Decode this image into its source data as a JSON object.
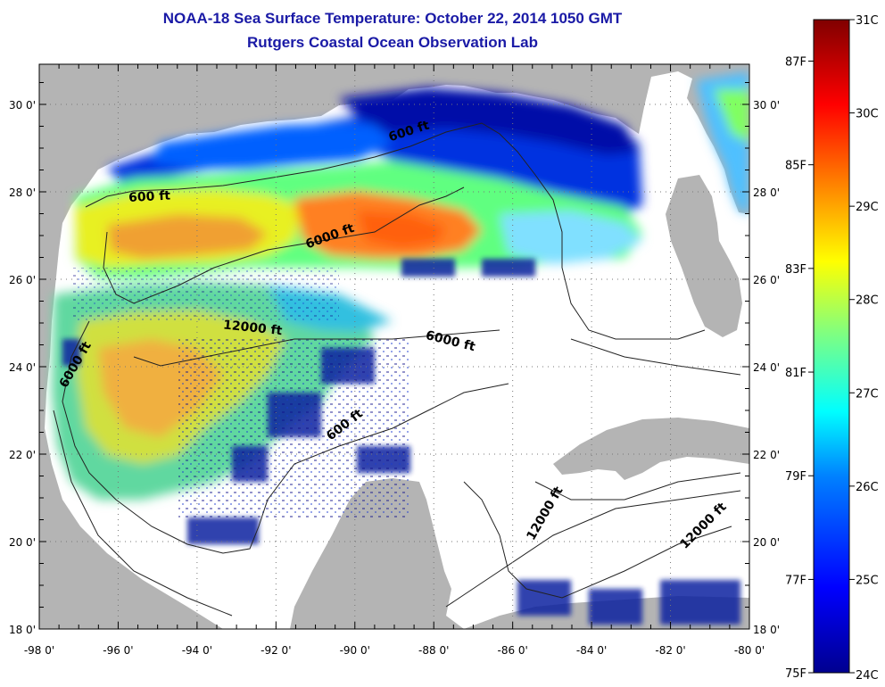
{
  "title": "NOAA-18 Sea Surface Temperature:  October 22, 2014 1050 GMT",
  "subtitle": "Rutgers Coastal Ocean Observation Lab",
  "map": {
    "lat_labels": [
      "30 0'",
      "28 0'",
      "26 0'",
      "24 0'",
      "22 0'",
      "20 0'",
      "18 0'"
    ],
    "lat_values": [
      30,
      28,
      26,
      24,
      22,
      20,
      18
    ],
    "lon_labels": [
      "-98 0'",
      "-96 0'",
      "-94 0'",
      "-92 0'",
      "-90 0'",
      "-88 0'",
      "-86 0'",
      "-84 0'",
      "-82 0'",
      "-80 0'"
    ],
    "lon_values": [
      -98,
      -96,
      -94,
      -92,
      -90,
      -88,
      -86,
      -84,
      -82,
      -80
    ],
    "lat_range": [
      18,
      31
    ],
    "lon_range": [
      -98,
      -80
    ],
    "grid": "dotted",
    "land_color": "#b4b4b4",
    "no_data_color": "#ffffff",
    "contour_labels": [
      {
        "text": "600 ft",
        "lon": -88.6,
        "lat": 29.3,
        "rotate": -18
      },
      {
        "text": "600 ft",
        "lon": -95.2,
        "lat": 27.8,
        "rotate": -3
      },
      {
        "text": "6000 ft",
        "lon": -90.6,
        "lat": 26.9,
        "rotate": -20
      },
      {
        "text": "12000 ft",
        "lon": -92.6,
        "lat": 24.8,
        "rotate": 6
      },
      {
        "text": "6000 ft",
        "lon": -97.0,
        "lat": 24.0,
        "rotate": -60
      },
      {
        "text": "6000 ft",
        "lon": -87.6,
        "lat": 24.5,
        "rotate": 14
      },
      {
        "text": "600 ft",
        "lon": -90.2,
        "lat": 22.6,
        "rotate": -38
      },
      {
        "text": "12000 ft",
        "lon": -85.1,
        "lat": 20.6,
        "rotate": -60
      },
      {
        "text": "12000 ft",
        "lon": -81.1,
        "lat": 20.3,
        "rotate": -45
      }
    ]
  },
  "colorbar": {
    "celsius_labels": [
      "31C",
      "30C",
      "29C",
      "28C",
      "27C",
      "26C",
      "25C",
      "24C"
    ],
    "celsius_values": [
      31,
      30,
      29,
      28,
      27,
      26,
      25,
      24
    ],
    "fahrenheit_labels": [
      "87F",
      "85F",
      "83F",
      "81F",
      "79F",
      "77F",
      "75F"
    ],
    "fahrenheit_values": [
      87,
      85,
      83,
      81,
      79,
      77,
      75
    ],
    "range_c": [
      24,
      31
    ],
    "colors": [
      "#00008f",
      "#0000ff",
      "#0080ff",
      "#00ffff",
      "#80ff80",
      "#ffff00",
      "#ff8000",
      "#ff0000",
      "#800000"
    ]
  }
}
